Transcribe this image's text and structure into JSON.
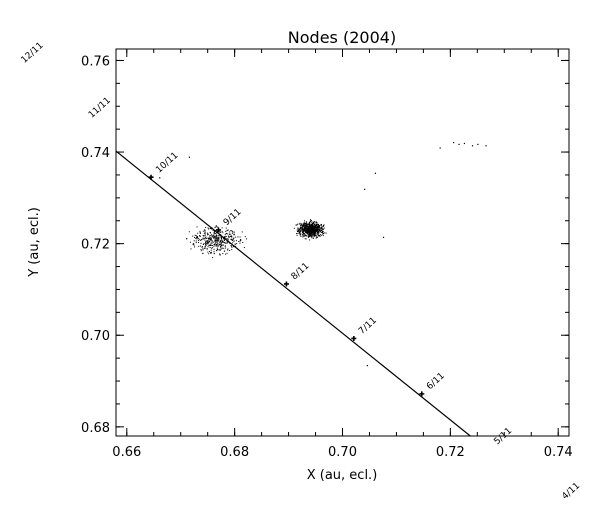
{
  "chart_data": {
    "type": "scatter",
    "title": "Nodes (2004)",
    "xlabel": "X (au, ecl.)",
    "ylabel": "Y (au, ecl.)",
    "xlim": [
      0.658,
      0.742
    ],
    "ylim": [
      0.678,
      0.7625
    ],
    "x_ticks": [
      0.66,
      0.68,
      0.7,
      0.72,
      0.74
    ],
    "x_tick_labels": [
      "0.66",
      "0.68",
      "0.70",
      "0.72",
      "0.74"
    ],
    "y_ticks": [
      0.68,
      0.7,
      0.72,
      0.74,
      0.76
    ],
    "y_tick_labels": [
      "0.68",
      "0.70",
      "0.72",
      "0.74",
      "0.76"
    ],
    "grid": false,
    "legend": "none",
    "series": [
      {
        "type": "line",
        "x": [
          0.658,
          0.7237
        ],
        "y": [
          0.7402,
          0.678
        ]
      },
      {
        "type": "markers",
        "x": [
          0.6645,
          0.677,
          0.6896,
          0.7021,
          0.7147
        ],
        "y": [
          0.7345,
          0.723,
          0.7112,
          0.6993,
          0.6872
        ]
      },
      {
        "type": "scatter-cloud",
        "description_center": [
          0.6765,
          0.7208
        ],
        "spread": [
          0.0035,
          0.0023
        ],
        "x": [
          0.671,
          0.6722,
          0.6735,
          0.6748,
          0.676,
          0.6772,
          0.6785,
          0.6797,
          0.681,
          0.674,
          0.6755,
          0.677,
          0.679,
          0.673,
          0.68,
          0.6765,
          0.6745,
          0.678
        ],
        "y": [
          0.7212,
          0.72,
          0.7225,
          0.719,
          0.7218,
          0.7205,
          0.723,
          0.7195,
          0.721,
          0.718,
          0.7235,
          0.7188,
          0.7222,
          0.7215,
          0.72,
          0.724,
          0.7205,
          0.7185
        ]
      },
      {
        "type": "scatter-cloud",
        "description_center": [
          0.694,
          0.7232
        ],
        "spread": [
          0.002,
          0.0015
        ],
        "x": [
          0.6925,
          0.6932,
          0.6938,
          0.6944,
          0.695,
          0.6955,
          0.693,
          0.6946,
          0.694,
          0.6935,
          0.6952,
          0.6928
        ],
        "y": [
          0.7232,
          0.724,
          0.7225,
          0.7245,
          0.723,
          0.7238,
          0.722,
          0.7222,
          0.725,
          0.7236,
          0.7215,
          0.7242
        ]
      },
      {
        "type": "scatter-sparse",
        "x": [
          0.666,
          0.706,
          0.7075,
          0.7045,
          0.704,
          0.718,
          0.7205,
          0.7215,
          0.7225,
          0.724,
          0.725,
          0.7265,
          0.6715
        ],
        "y": [
          0.7345,
          0.7355,
          0.7215,
          0.6935,
          0.732,
          0.741,
          0.7422,
          0.7418,
          0.742,
          0.7415,
          0.7418,
          0.7415,
          0.739
        ]
      }
    ],
    "annotations": [
      {
        "text": "10/11",
        "x": 0.6645,
        "y": 0.7345
      },
      {
        "text": "9/11",
        "x": 0.677,
        "y": 0.723
      },
      {
        "text": "8/11",
        "x": 0.6896,
        "y": 0.7112
      },
      {
        "text": "7/11",
        "x": 0.7021,
        "y": 0.6993
      },
      {
        "text": "6/11",
        "x": 0.7147,
        "y": 0.6872
      },
      {
        "text": "5/11",
        "x": 0.7272,
        "y": 0.6752
      },
      {
        "text": "4/11",
        "x": 0.7398,
        "y": 0.6632
      },
      {
        "text": "11/11",
        "x": 0.652,
        "y": 0.7465
      },
      {
        "text": "12/11",
        "x": 0.6395,
        "y": 0.7585
      }
    ],
    "marker_color": "#000000",
    "line_color": "#000000"
  }
}
